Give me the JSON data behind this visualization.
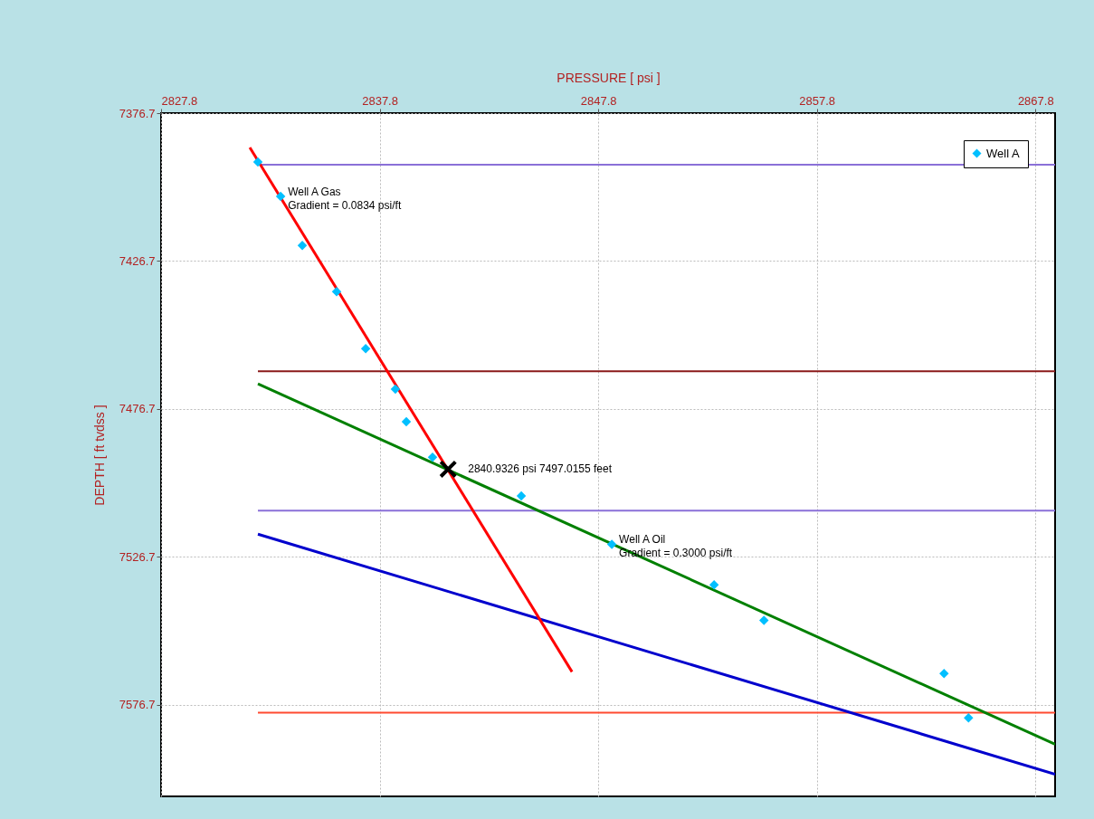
{
  "chart_data": {
    "type": "scatter",
    "xlabel": "PRESSURE [ psi ]",
    "ylabel": "DEPTH [ ft tvdss ]",
    "xlim": [
      2827.8,
      2868.7
    ],
    "xticks": [
      2827.8,
      2837.8,
      2847.8,
      2857.8,
      2867.8
    ],
    "ylim": [
      7607.6,
      7376.7
    ],
    "yticks": [
      7376.7,
      7426.7,
      7476.7,
      7526.7,
      7576.7
    ],
    "grid": true,
    "legend": "top right",
    "series": [
      {
        "type": "line",
        "color": "#8a70d8",
        "x": [
          2832.23,
          2868.7
        ],
        "values": [
          7394.1,
          7394.1
        ]
      },
      {
        "type": "line",
        "color": "#8b1a1a",
        "x": [
          2832.23,
          2868.7
        ],
        "values": [
          7463.9,
          7463.9
        ]
      },
      {
        "type": "line",
        "color": "#8a70d8",
        "x": [
          2832.23,
          2868.7
        ],
        "values": [
          7511.0,
          7511.0
        ]
      },
      {
        "type": "line",
        "color": "#ff4a30",
        "x": [
          2832.23,
          2868.7
        ],
        "values": [
          7579.3,
          7579.3
        ]
      },
      {
        "type": "line",
        "color": "#0000cd",
        "x": [
          2832.23,
          2868.7
        ],
        "values": [
          7519.0,
          7600.1
        ]
      },
      {
        "type": "line",
        "color": "#008000",
        "x": [
          2832.23,
          2868.7
        ],
        "values": [
          7468.2,
          7590.0
        ]
      },
      {
        "type": "line",
        "color": "#ff0000",
        "x": [
          2831.86,
          2846.6
        ],
        "values": [
          7388.3,
          7565.5
        ]
      },
      {
        "name": "Well A",
        "color": "#00bfff",
        "marker": "diamond",
        "x": [
          2832.23,
          2833.27,
          2834.26,
          2835.83,
          2837.16,
          2838.52,
          2839.02,
          2840.22,
          2844.28,
          2848.42,
          2853.1,
          2855.38,
          2863.62,
          2864.74
        ],
        "values": [
          7393.2,
          7404.8,
          7421.4,
          7437.0,
          7456.3,
          7470.0,
          7481.0,
          7493.0,
          7506.1,
          7522.4,
          7536.1,
          7548.1,
          7566.1,
          7581.1
        ]
      },
      {
        "color": "#000000",
        "marker": "cross",
        "x": [
          2840.9326
        ],
        "values": [
          7497.0155
        ]
      }
    ],
    "annotations": [
      {
        "text": "Well A Gas\nGradient = 0.0834 psi/ft",
        "x": 2833.27,
        "y": 7404.8
      },
      {
        "text": "Well A Oil\nGradient = 0.3000 psi/ft",
        "x": 2848.42,
        "y": 7522.4
      },
      {
        "text": "2840.9326 psi 7497.0155 feet",
        "x": 2840.9326,
        "y": 7497.0155
      }
    ]
  }
}
